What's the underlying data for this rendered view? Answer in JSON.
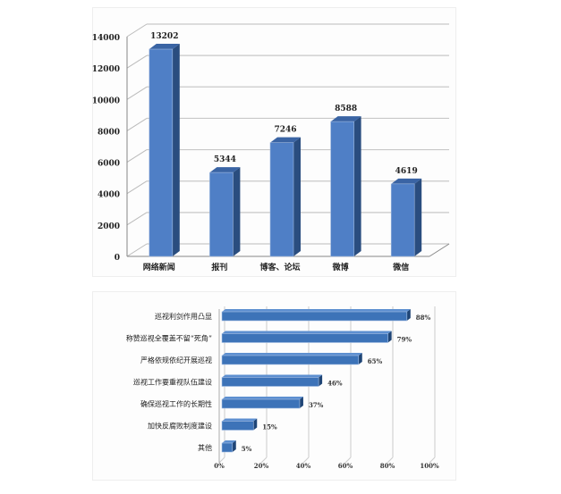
{
  "chart_data": [
    {
      "type": "bar",
      "categories": [
        "网络新闻",
        "报刊",
        "博客、论坛",
        "微博",
        "微信"
      ],
      "values": [
        13202,
        5344,
        7246,
        8588,
        4619
      ],
      "ylim": [
        0,
        14000
      ],
      "yticks": [
        0,
        2000,
        4000,
        6000,
        8000,
        10000,
        12000,
        14000
      ],
      "grid": true,
      "style": "3d",
      "colors": {
        "front": "#4f7fc6",
        "side": "#2a4d7f",
        "top": "#3a64a4"
      }
    },
    {
      "type": "bar",
      "orientation": "horizontal",
      "categories": [
        "巡视利剑作用凸显",
        "称赞巡视全覆盖不留“死角”",
        "严格依规依纪开展巡视",
        "巡视工作要重视队伍建设",
        "确保巡视工作的长期性",
        "加快反腐败制度建设",
        "其他"
      ],
      "values": [
        88,
        79,
        65,
        46,
        37,
        15,
        5
      ],
      "value_labels": [
        "88%",
        "79%",
        "65%",
        "46%",
        "37%",
        "15%",
        "5%"
      ],
      "xlim": [
        0,
        100
      ],
      "xticks": [
        "0%",
        "20%",
        "40%",
        "60%",
        "80%",
        "100%"
      ],
      "grid": true,
      "style": "3d",
      "colors": {
        "front": "#3d73b8",
        "side": "#1f4576"
      }
    }
  ]
}
